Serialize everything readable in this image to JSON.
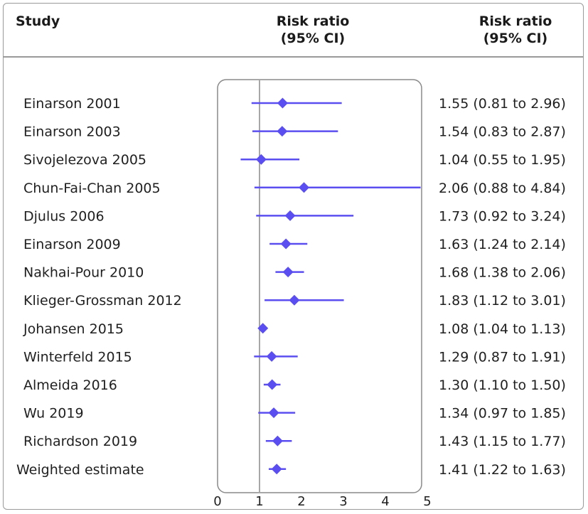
{
  "header": {
    "study": "Study",
    "risk_ratio_mid_line1": "Risk ratio",
    "risk_ratio_mid_line2": "(95% CI)",
    "risk_ratio_right_line1": "Risk ratio",
    "risk_ratio_right_line2": "(95% CI)"
  },
  "colors": {
    "marker": "#5b4ef0",
    "axis": "#8a8a8a",
    "frame": "#9a9a9a"
  },
  "chart_data": {
    "type": "forest",
    "xlim": [
      0,
      5
    ],
    "xticks": [
      "0",
      "1",
      "2",
      "3",
      "4",
      "5"
    ],
    "reference_line": 1,
    "rows": [
      {
        "study": "Einarson 2001",
        "rr": 1.55,
        "lo": 0.81,
        "hi": 2.96,
        "label": "1.55 (0.81 to 2.96)"
      },
      {
        "study": "Einarson 2003",
        "rr": 1.54,
        "lo": 0.83,
        "hi": 2.87,
        "label": "1.54 (0.83 to 2.87)"
      },
      {
        "study": "Sivojelezova 2005",
        "rr": 1.04,
        "lo": 0.55,
        "hi": 1.95,
        "label": "1.04 (0.55 to 1.95)"
      },
      {
        "study": "Chun-Fai-Chan 2005",
        "rr": 2.06,
        "lo": 0.88,
        "hi": 4.84,
        "label": "2.06 (0.88 to 4.84)"
      },
      {
        "study": "Djulus 2006",
        "rr": 1.73,
        "lo": 0.92,
        "hi": 3.24,
        "label": "1.73 (0.92 to 3.24)"
      },
      {
        "study": "Einarson 2009",
        "rr": 1.63,
        "lo": 1.24,
        "hi": 2.14,
        "label": "1.63 (1.24 to 2.14)"
      },
      {
        "study": "Nakhai-Pour 2010",
        "rr": 1.68,
        "lo": 1.38,
        "hi": 2.06,
        "label": "1.68 (1.38 to 2.06)"
      },
      {
        "study": "Klieger-Grossman 2012",
        "rr": 1.83,
        "lo": 1.12,
        "hi": 3.01,
        "label": "1.83 (1.12 to 3.01)"
      },
      {
        "study": "Johansen 2015",
        "rr": 1.08,
        "lo": 1.04,
        "hi": 1.13,
        "label": "1.08 (1.04 to 1.13)"
      },
      {
        "study": "Winterfeld 2015",
        "rr": 1.29,
        "lo": 0.87,
        "hi": 1.91,
        "label": "1.29 (0.87 to 1.91)"
      },
      {
        "study": "Almeida 2016",
        "rr": 1.3,
        "lo": 1.1,
        "hi": 1.5,
        "label": "1.30 (1.10 to 1.50)"
      },
      {
        "study": "Wu 2019",
        "rr": 1.34,
        "lo": 0.97,
        "hi": 1.85,
        "label": "1.34 (0.97 to 1.85)"
      },
      {
        "study": "Richardson 2019",
        "rr": 1.43,
        "lo": 1.15,
        "hi": 1.77,
        "label": "1.43 (1.15 to 1.77)"
      },
      {
        "study": "Weighted estimate",
        "rr": 1.41,
        "lo": 1.22,
        "hi": 1.63,
        "label": "1.41 (1.22 to 1.63)"
      }
    ]
  }
}
